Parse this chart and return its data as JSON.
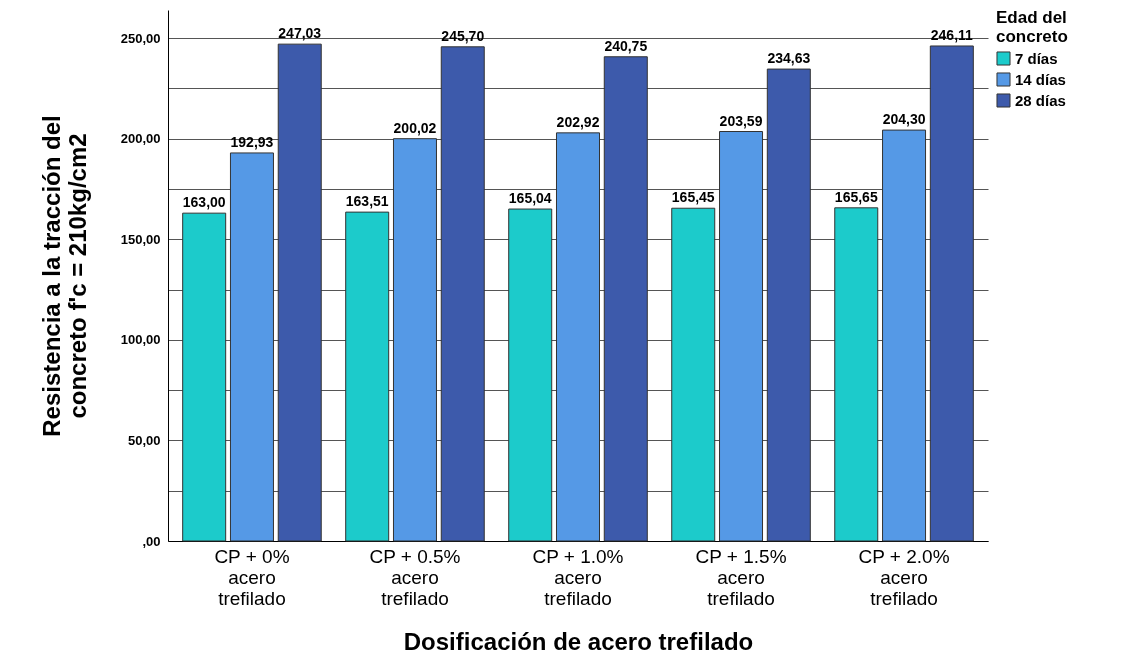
{
  "chart_data": {
    "type": "bar",
    "xlabel": "Dosificación de acero trefilado",
    "ylabel": "Resistencia a la tracción del concreto f'c = 210kg/cm2",
    "legend_title": "Edad del concreto",
    "legend": "top right",
    "grid": "y",
    "categories": [
      "CP + 0% acero trefilado",
      "CP + 0.5% acero trefilado",
      "CP + 1.0% acero trefilado",
      "CP + 1.5% acero trefilado",
      "CP + 2.0% acero trefilado"
    ],
    "series": [
      {
        "name": "7 días",
        "color": "#1ccbcb",
        "values": [
          163.0,
          163.51,
          165.04,
          165.45,
          165.65
        ],
        "value_labels": [
          "163,00",
          "163,51",
          "165,04",
          "165,45",
          "165,65"
        ]
      },
      {
        "name": "14 días",
        "color": "#5599e6",
        "values": [
          192.93,
          200.02,
          202.92,
          203.59,
          204.3
        ],
        "value_labels": [
          "192,93",
          "200,02",
          "202,92",
          "203,59",
          "204,30"
        ]
      },
      {
        "name": "28 días",
        "color": "#3d5aab",
        "values": [
          247.03,
          245.7,
          240.75,
          234.63,
          246.11
        ],
        "value_labels": [
          "247,03",
          "245,70",
          "240,75",
          "234,63",
          "246,11"
        ]
      }
    ],
    "ylim": [
      0,
      264
    ],
    "yticks": [
      {
        "value": 0,
        "label": ",00"
      },
      {
        "value": 25,
        "label": null
      },
      {
        "value": 50,
        "label": "50,00"
      },
      {
        "value": 75,
        "label": null
      },
      {
        "value": 100,
        "label": "100,00"
      },
      {
        "value": 125,
        "label": null
      },
      {
        "value": 150,
        "label": "150,00"
      },
      {
        "value": 175,
        "label": null
      },
      {
        "value": 200,
        "label": "200,00"
      },
      {
        "value": 225,
        "label": null
      },
      {
        "value": 250,
        "label": "250,00"
      }
    ]
  }
}
